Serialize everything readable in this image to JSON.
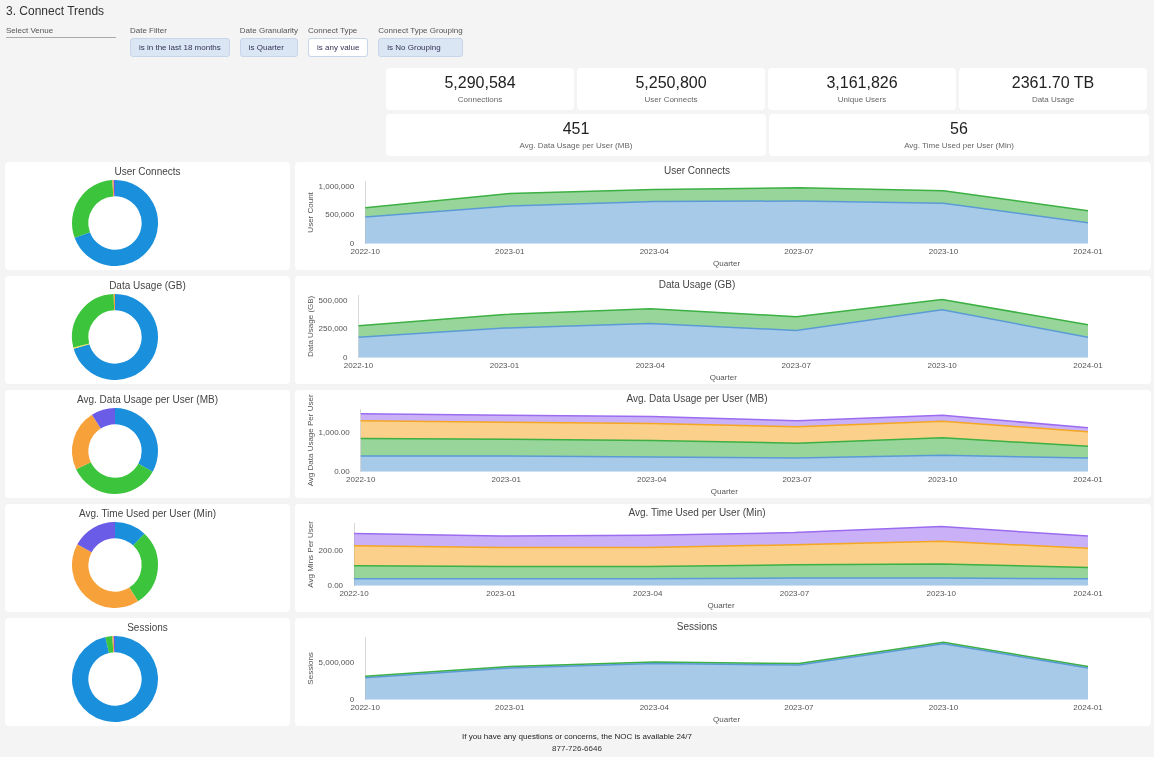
{
  "chart_data": [
    {
      "type": "other",
      "title": "3. Connect Trends",
      "annotations": [
        "Select Venue",
        "Date Filter",
        "is in the last 18 months",
        "Date Granularity",
        "is Quarter",
        "Connect Type",
        "is any value",
        "Connect Type Grouping",
        "is No Grouping"
      ]
    },
    {
      "type": "other",
      "annotations": [
        "5,290,584",
        "Connections",
        "5,250,800",
        "User Connects",
        "3,161,826",
        "Unique Users",
        "2361.70 TB",
        "Data Usage",
        "451",
        "Avg. Data Usage per User (MB)",
        "56",
        "Avg. Time Used per User (Min)"
      ]
    },
    {
      "type": "donut",
      "title": "User Connects",
      "categories": [
        null,
        null,
        null,
        null
      ],
      "values": [
        69.4,
        29.6,
        0.5,
        0.5
      ],
      "colors": [
        "#1a8fdb",
        "#3cc43c",
        "#f7a13a",
        "#6a5ce6"
      ]
    },
    {
      "type": "area",
      "title": "User Connects",
      "xlabel": "Quarter",
      "ylabel": "User Count",
      "stacked": true,
      "categories": [
        "2022-10",
        "2023-01",
        "2023-04",
        "2023-07",
        "2023-10",
        "2024-01"
      ],
      "ylim": [
        0,
        1100000
      ],
      "yticks": [
        {
          "value": 0,
          "label": "0"
        },
        {
          "value": 500000,
          "label": "500,000"
        },
        {
          "value": 1000000,
          "label": "1,000,000"
        }
      ],
      "series": [
        {
          "color": "#5b9bd5",
          "values": [
            470000,
            660000,
            740000,
            750000,
            710000,
            370000
          ]
        },
        {
          "color": "#3cb043",
          "values": [
            160000,
            220000,
            210000,
            230000,
            220000,
            210000
          ]
        }
      ]
    },
    {
      "type": "donut",
      "title": "Data Usage (GB)",
      "categories": [
        null,
        null,
        null,
        null
      ],
      "values": [
        70.6,
        0.5,
        28.4,
        0.5
      ],
      "colors": [
        "#1a8fdb",
        "#f3e04a",
        "#3cc43c",
        "#f7a13a"
      ]
    },
    {
      "type": "area",
      "title": "Data Usage (GB)",
      "xlabel": "Quarter",
      "ylabel": "Data Usage (GB)",
      "stacked": true,
      "categories": [
        "2022-10",
        "2023-01",
        "2023-04",
        "2023-07",
        "2023-10",
        "2024-01"
      ],
      "ylim": [
        0,
        550000
      ],
      "yticks": [
        {
          "value": 0,
          "label": "0"
        },
        {
          "value": 250000,
          "label": "250,000"
        },
        {
          "value": 500000,
          "label": "500,000"
        }
      ],
      "series": [
        {
          "color": "#5b9bd5",
          "values": [
            180000,
            260000,
            300000,
            240000,
            420000,
            180000
          ]
        },
        {
          "color": "#3cb043",
          "values": [
            100000,
            120000,
            130000,
            120000,
            90000,
            110000
          ]
        }
      ]
    },
    {
      "type": "donut",
      "title": "Avg. Data Usage per User (MB)",
      "categories": [
        null,
        null,
        null,
        null
      ],
      "values": [
        33,
        35,
        23,
        9
      ],
      "colors": [
        "#1a8fdb",
        "#3cc43c",
        "#f7a13a",
        "#6a5ce6"
      ]
    },
    {
      "type": "area",
      "title": "Avg. Data Usage per User (MB)",
      "xlabel": "Quarter",
      "ylabel": "Avg Data Usage Per User",
      "stacked": true,
      "categories": [
        "2022-10",
        "2023-01",
        "2023-04",
        "2023-07",
        "2023-10",
        "2024-01"
      ],
      "ylim": [
        0,
        1600
      ],
      "yticks": [
        {
          "value": 0,
          "label": "0.00"
        },
        {
          "value": 1000,
          "label": "1,000.00"
        }
      ],
      "series": [
        {
          "color": "#5b9bd5",
          "values": [
            400,
            400,
            380,
            350,
            420,
            350
          ]
        },
        {
          "color": "#3cb043",
          "values": [
            450,
            430,
            420,
            380,
            450,
            300
          ]
        },
        {
          "color": "#f5a623",
          "values": [
            450,
            430,
            430,
            420,
            420,
            370
          ]
        },
        {
          "color": "#9b6cf0",
          "values": [
            180,
            180,
            180,
            150,
            150,
            100
          ]
        }
      ]
    },
    {
      "type": "donut",
      "title": "Avg. Time Used per User (Min)",
      "categories": [
        null,
        null,
        null,
        null
      ],
      "values": [
        12,
        29,
        42,
        17
      ],
      "colors": [
        "#1a8fdb",
        "#3cc43c",
        "#f7a13a",
        "#6a5ce6"
      ]
    },
    {
      "type": "area",
      "title": "Avg. Time Used per User (Min)",
      "xlabel": "Quarter",
      "ylabel": "Avg Mins Per User",
      "stacked": true,
      "categories": [
        "2022-10",
        "2023-01",
        "2023-04",
        "2023-07",
        "2023-10",
        "2024-01"
      ],
      "ylim": [
        0,
        360
      ],
      "yticks": [
        {
          "value": 0,
          "label": "0.00"
        },
        {
          "value": 200,
          "label": "200.00"
        }
      ],
      "series": [
        {
          "color": "#5b9bd5",
          "values": [
            40,
            40,
            40,
            45,
            45,
            40
          ]
        },
        {
          "color": "#3cb043",
          "values": [
            75,
            70,
            70,
            75,
            80,
            65
          ]
        },
        {
          "color": "#f5a623",
          "values": [
            115,
            110,
            110,
            115,
            130,
            110
          ]
        },
        {
          "color": "#9b6cf0",
          "values": [
            70,
            65,
            70,
            70,
            85,
            70
          ]
        }
      ]
    },
    {
      "type": "donut",
      "title": "Sessions",
      "categories": [
        null,
        null,
        null,
        null
      ],
      "values": [
        96.4,
        2.6,
        0.5,
        0.5
      ],
      "colors": [
        "#1a8fdb",
        "#3cc43c",
        "#f7a13a",
        "#6a5ce6"
      ]
    },
    {
      "type": "area",
      "title": "Sessions",
      "xlabel": "Quarter",
      "ylabel": "Sessions",
      "stacked": true,
      "categories": [
        "2022-10",
        "2023-01",
        "2023-04",
        "2023-07",
        "2023-10",
        "2024-01"
      ],
      "ylim": [
        0,
        8500000
      ],
      "yticks": [
        {
          "value": 0,
          "label": "0"
        },
        {
          "value": 5000000,
          "label": "5,000,000"
        }
      ],
      "series": [
        {
          "color": "#5b9bd5",
          "values": [
            3000000,
            4300000,
            4900000,
            4700000,
            7600000,
            4300000
          ]
        },
        {
          "color": "#3cb043",
          "values": [
            200000,
            200000,
            200000,
            200000,
            200000,
            200000
          ]
        }
      ]
    },
    {
      "type": "other",
      "annotations": [
        "If you have any questions or concerns, the NOC is available 24/7",
        "877-726-6646"
      ]
    }
  ]
}
